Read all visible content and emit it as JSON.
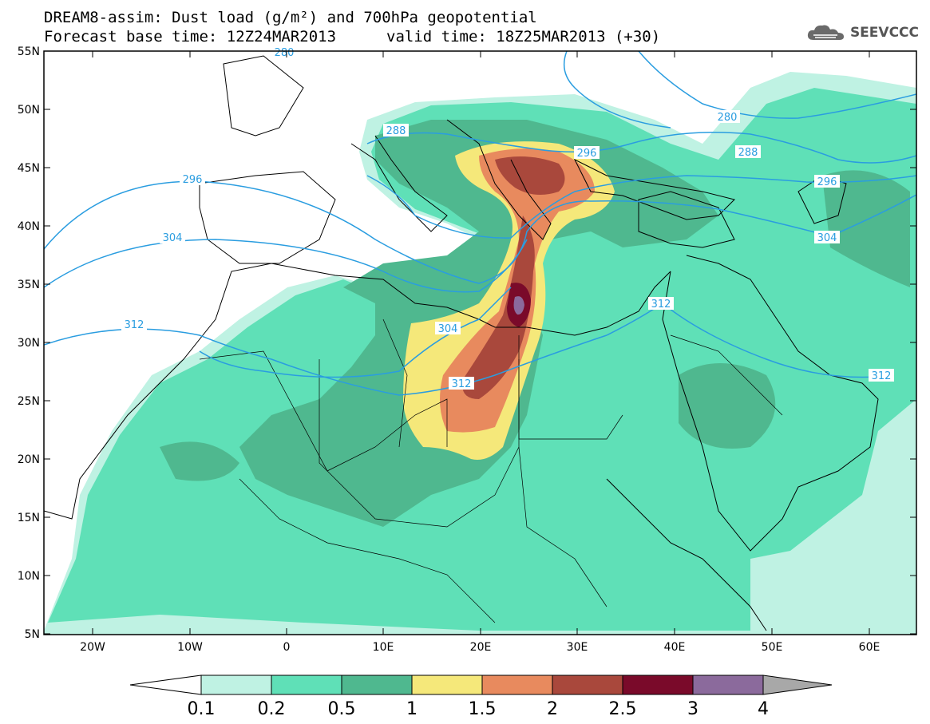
{
  "header": {
    "title": "DREAM8-assim: Dust load (g/m²) and 700hPa geopotential",
    "base_time": "Forecast base time: 12Z24MAR2013",
    "valid_time": "valid time: 18Z25MAR2013 (+30)",
    "logo_text": "SEEVCCC"
  },
  "axes": {
    "lat_labels": [
      "55N",
      "50N",
      "45N",
      "40N",
      "35N",
      "30N",
      "25N",
      "20N",
      "15N",
      "10N",
      "5N"
    ],
    "lon_labels": [
      "20W",
      "10W",
      "0",
      "10E",
      "20E",
      "30E",
      "40E",
      "50E",
      "60E"
    ]
  },
  "contour_labels": [
    "280",
    "288",
    "288",
    "296",
    "296",
    "296",
    "304",
    "304",
    "304",
    "312",
    "312",
    "312",
    "312",
    "280"
  ],
  "colorbar": {
    "tick_labels": [
      "0.1",
      "0.2",
      "0.5",
      "1",
      "1.5",
      "2",
      "2.5",
      "3",
      "4"
    ],
    "colors": [
      "#bff2e3",
      "#5fe0b7",
      "#4fb88f",
      "#f5e87a",
      "#e88a5e",
      "#a9483c",
      "#7a0a2a",
      "#8b6a9c"
    ]
  },
  "colors": {
    "level_01": "#bff2e3",
    "level_02": "#5fe0b7",
    "level_05": "#4fb88f",
    "level_1": "#f5e87a",
    "level_15": "#e88a5e",
    "level_2": "#a9483c",
    "level_25": "#7a0a2a",
    "level_3": "#8b6a9c",
    "contour": "#2a9de0"
  }
}
